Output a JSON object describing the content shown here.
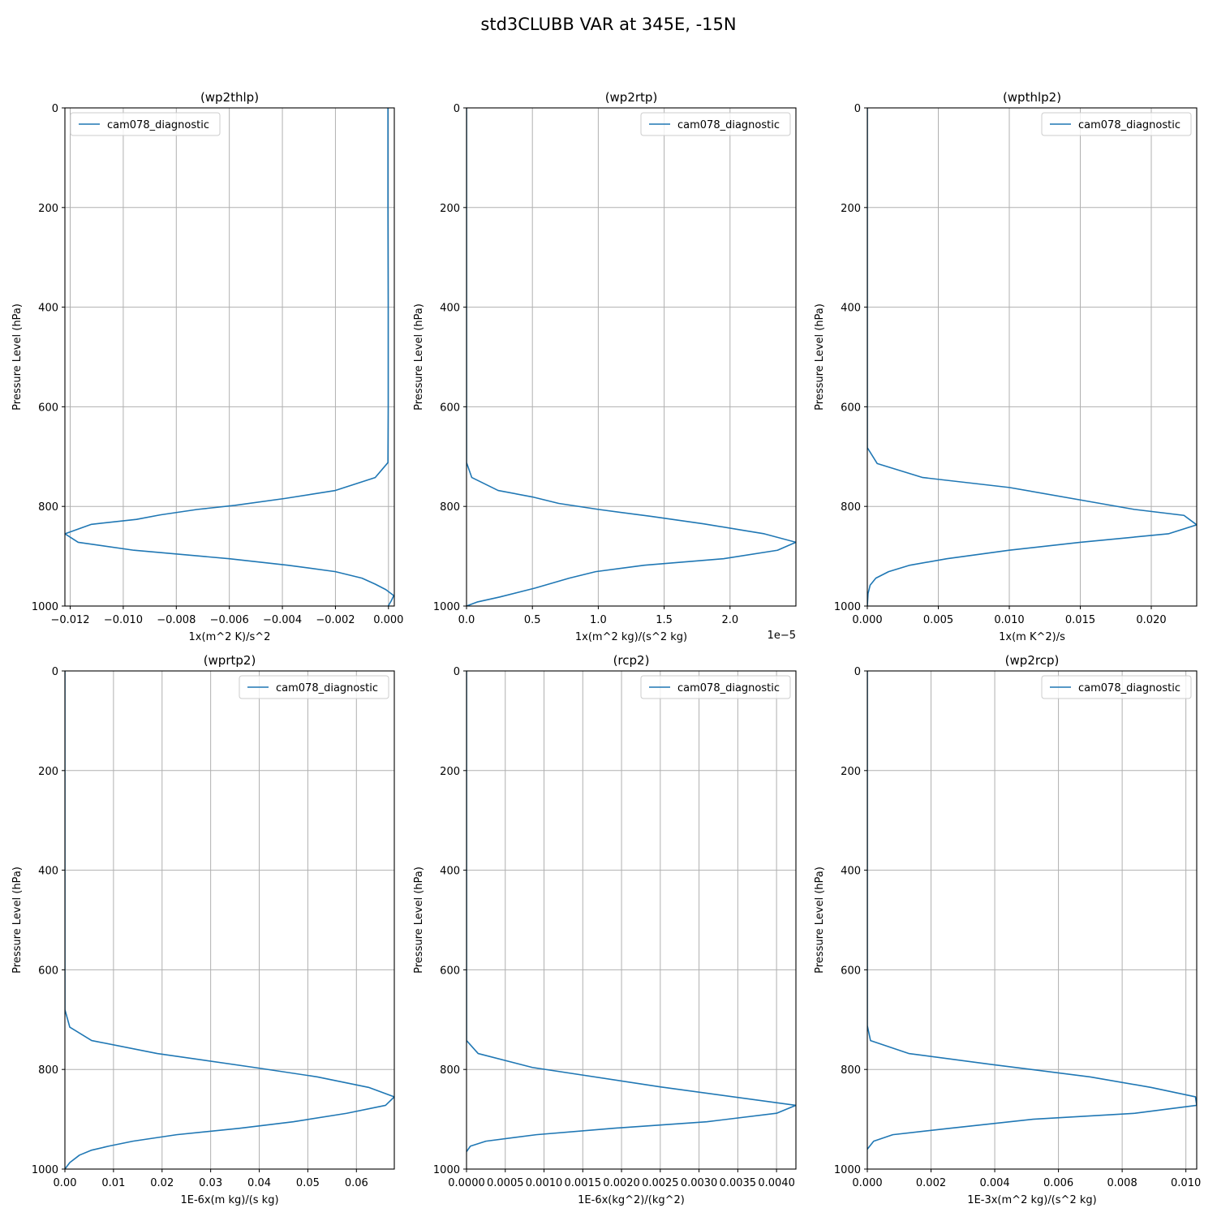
{
  "figure": {
    "title": "std3CLUBB VAR at 345E, -15N",
    "line_color": "#1f77b4"
  },
  "chart_data": [
    {
      "type": "line",
      "title": "(wp2thlp)",
      "xlabel": "1x(m^2 K)/s^2",
      "ylabel": "Pressure Level (hPa)",
      "xlim": [
        -0.0122,
        0.00022
      ],
      "ylim": [
        1000,
        0
      ],
      "yinverted": true,
      "grid": true,
      "xticks": [
        -0.012,
        -0.01,
        -0.008,
        -0.006,
        -0.004,
        -0.002,
        0.0
      ],
      "xtick_labels": [
        "−0.012",
        "−0.010",
        "−0.008",
        "−0.006",
        "−0.004",
        "−0.002",
        "0.000"
      ],
      "yticks": [
        0,
        200,
        400,
        600,
        800,
        1000
      ],
      "ytick_labels": [
        "0",
        "200",
        "400",
        "600",
        "800",
        "1000"
      ],
      "offset_label": "",
      "legend": "upper left",
      "series": [
        {
          "name": "cam078_diagnostic",
          "x": [
            -2e-05,
            -2e-05,
            -1e-05,
            -1e-05,
            -2e-05,
            -0.0005,
            -0.002,
            -0.0039,
            -0.0058,
            -0.0072,
            -0.0086,
            -0.0095,
            -0.0112,
            -0.0122,
            -0.0117,
            -0.0096,
            -0.006,
            -0.0038,
            -0.002,
            -0.001,
            -0.0005,
            -0.0001,
            0.0002,
            0.0001,
            -1e-05
          ],
          "y": [
            0,
            200,
            400,
            600,
            712,
            742,
            768,
            784,
            798,
            806,
            817,
            826,
            836,
            855,
            872,
            888,
            905,
            918,
            931,
            944,
            956,
            967,
            979,
            990,
            1000
          ]
        }
      ]
    },
    {
      "type": "line",
      "title": "(wp2rtp)",
      "xlabel": "1x(m^2 kg)/(s^2 kg)",
      "ylabel": "Pressure Level (hPa)",
      "xlim": [
        0,
        2.5
      ],
      "ylim": [
        1000,
        0
      ],
      "yinverted": true,
      "grid": true,
      "xticks": [
        0.0,
        0.5,
        1.0,
        1.5,
        2.0
      ],
      "xtick_labels": [
        "0.0",
        "0.5",
        "1.0",
        "1.5",
        "2.0"
      ],
      "yticks": [
        0,
        200,
        400,
        600,
        800,
        1000
      ],
      "ytick_labels": [
        "0",
        "200",
        "400",
        "600",
        "800",
        "1000"
      ],
      "offset_label": "1e−5",
      "legend": "upper right",
      "series": [
        {
          "name": "cam078_diagnostic",
          "x": [
            0,
            0,
            0,
            0,
            0.0,
            0.04,
            0.24,
            0.5,
            0.7,
            1.0,
            1.4,
            1.8,
            2.1,
            2.26,
            2.5,
            2.36,
            1.95,
            1.35,
            0.98,
            0.78,
            0.52,
            0.25,
            0.08,
            0.0
          ],
          "y": [
            0,
            200,
            400,
            600,
            712,
            742,
            768,
            781,
            794,
            806,
            820,
            835,
            848,
            855,
            872,
            888,
            905,
            918,
            931,
            944,
            964,
            982,
            992,
            1000
          ]
        }
      ]
    },
    {
      "type": "line",
      "title": "(wpthlp2)",
      "xlabel": "1x(m K^2)/s",
      "ylabel": "Pressure Level (hPa)",
      "xlim": [
        0,
        0.0232
      ],
      "ylim": [
        1000,
        0
      ],
      "yinverted": true,
      "grid": true,
      "xticks": [
        0.0,
        0.005,
        0.01,
        0.015,
        0.02
      ],
      "xtick_labels": [
        "0.000",
        "0.005",
        "0.010",
        "0.015",
        "0.020"
      ],
      "yticks": [
        0,
        200,
        400,
        600,
        800,
        1000
      ],
      "ytick_labels": [
        "0",
        "200",
        "400",
        "600",
        "800",
        "1000"
      ],
      "offset_label": "",
      "legend": "upper right",
      "series": [
        {
          "name": "cam078_diagnostic",
          "x": [
            0,
            0,
            0,
            0,
            0.0,
            0.0007,
            0.0039,
            0.01,
            0.0188,
            0.0223,
            0.0232,
            0.0212,
            0.015,
            0.01,
            0.0056,
            0.003,
            0.0015,
            0.0006,
            0.0002,
            5e-05,
            0.0
          ],
          "y": [
            0,
            200,
            400,
            600,
            682,
            714,
            742,
            762,
            806,
            818,
            837,
            855,
            872,
            888,
            905,
            918,
            931,
            944,
            958,
            975,
            1000
          ]
        }
      ]
    },
    {
      "type": "line",
      "title": "(wprtp2)",
      "xlabel": "1E-6x(m kg)/(s kg)",
      "ylabel": "Pressure Level (hPa)",
      "xlim": [
        0,
        0.0678
      ],
      "ylim": [
        1000,
        0
      ],
      "yinverted": true,
      "grid": true,
      "xticks": [
        0.0,
        0.01,
        0.02,
        0.03,
        0.04,
        0.05,
        0.06
      ],
      "xtick_labels": [
        "0.00",
        "0.01",
        "0.02",
        "0.03",
        "0.04",
        "0.05",
        "0.06"
      ],
      "yticks": [
        0,
        200,
        400,
        600,
        800,
        1000
      ],
      "ytick_labels": [
        "0",
        "200",
        "400",
        "600",
        "800",
        "1000"
      ],
      "offset_label": "",
      "legend": "upper right",
      "series": [
        {
          "name": "cam078_diagnostic",
          "x": [
            0,
            0,
            0,
            0,
            0.0,
            0.001,
            0.0055,
            0.019,
            0.039,
            0.052,
            0.0625,
            0.0678,
            0.066,
            0.058,
            0.047,
            0.036,
            0.023,
            0.014,
            0.009,
            0.0055,
            0.003,
            0.001,
            0.0
          ],
          "y": [
            0,
            200,
            400,
            600,
            680,
            715,
            742,
            768,
            796,
            815,
            836,
            855,
            872,
            888,
            905,
            918,
            931,
            944,
            954,
            962,
            972,
            987,
            1000
          ]
        }
      ]
    },
    {
      "type": "line",
      "title": "(rcp2)",
      "xlabel": "1E-6x(kg^2)/(kg^2)",
      "ylabel": "Pressure Level (hPa)",
      "xlim": [
        0,
        0.00425
      ],
      "ylim": [
        1000,
        0
      ],
      "yinverted": true,
      "grid": true,
      "xticks": [
        0.0,
        0.0005,
        0.001,
        0.0015,
        0.002,
        0.0025,
        0.003,
        0.0035,
        0.004
      ],
      "xtick_labels": [
        "0.0000",
        "0.0005",
        "0.0010",
        "0.0015",
        "0.0020",
        "0.0025",
        "0.0030",
        "0.0035",
        "0.0040"
      ],
      "yticks": [
        0,
        200,
        400,
        600,
        800,
        1000
      ],
      "ytick_labels": [
        "0",
        "200",
        "400",
        "600",
        "800",
        "1000"
      ],
      "offset_label": "",
      "legend": "upper right",
      "series": [
        {
          "name": "cam078_diagnostic",
          "x": [
            0,
            0,
            0,
            0,
            0.0,
            0.00015,
            0.00085,
            0.0025,
            0.00425,
            0.004,
            0.0031,
            0.0019,
            0.0009,
            0.00025,
            5e-05,
            0.0
          ],
          "y": [
            0,
            200,
            400,
            600,
            742,
            768,
            796,
            835,
            872,
            888,
            905,
            918,
            931,
            944,
            954,
            965
          ]
        }
      ]
    },
    {
      "type": "line",
      "title": "(wp2rcp)",
      "xlabel": "1E-3x(m^2 kg)/(s^2 kg)",
      "ylabel": "Pressure Level (hPa)",
      "xlim": [
        0,
        0.01034
      ],
      "ylim": [
        1000,
        0
      ],
      "yinverted": true,
      "grid": true,
      "xticks": [
        0.0,
        0.002,
        0.004,
        0.006,
        0.008,
        0.01
      ],
      "xtick_labels": [
        "0.000",
        "0.002",
        "0.004",
        "0.006",
        "0.008",
        "0.010"
      ],
      "yticks": [
        0,
        200,
        400,
        600,
        800,
        1000
      ],
      "ytick_labels": [
        "0",
        "200",
        "400",
        "600",
        "800",
        "1000"
      ],
      "offset_label": "",
      "legend": "upper right",
      "series": [
        {
          "name": "cam078_diagnostic",
          "x": [
            0,
            0,
            0,
            0,
            0.0,
            0.0001,
            0.0013,
            0.0039,
            0.007,
            0.0089,
            0.0103,
            0.01034,
            0.0084,
            0.0052,
            0.0026,
            0.0008,
            0.0002,
            0.0
          ],
          "y": [
            0,
            200,
            400,
            600,
            712,
            742,
            768,
            790,
            815,
            836,
            855,
            872,
            888,
            900,
            918,
            931,
            944,
            960
          ]
        }
      ]
    }
  ]
}
